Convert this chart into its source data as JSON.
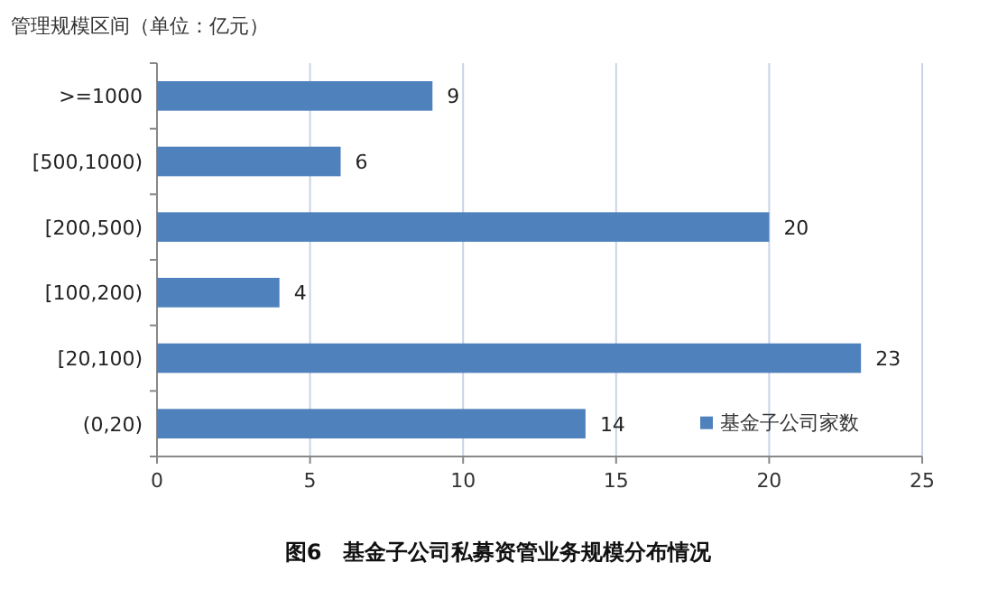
{
  "chart_data": {
    "type": "bar",
    "orientation": "horizontal",
    "title": "图6　基金子公司私募资管业务规模分布情况",
    "ylabel": "管理规模区间（单位：亿元）",
    "categories": [
      ">=1000",
      "[500,1000)",
      "[200,500)",
      "[100,200)",
      "[20,100)",
      "(0,20)"
    ],
    "series": [
      {
        "name": "基金子公司家数",
        "color": "#4f81bd",
        "values": [
          9,
          6,
          20,
          4,
          23,
          14
        ]
      }
    ],
    "xlim": [
      0,
      25
    ],
    "xticks": [
      0,
      5,
      10,
      15,
      20,
      25
    ],
    "grid": "x",
    "legend": "bottom right",
    "data_labels": true
  }
}
